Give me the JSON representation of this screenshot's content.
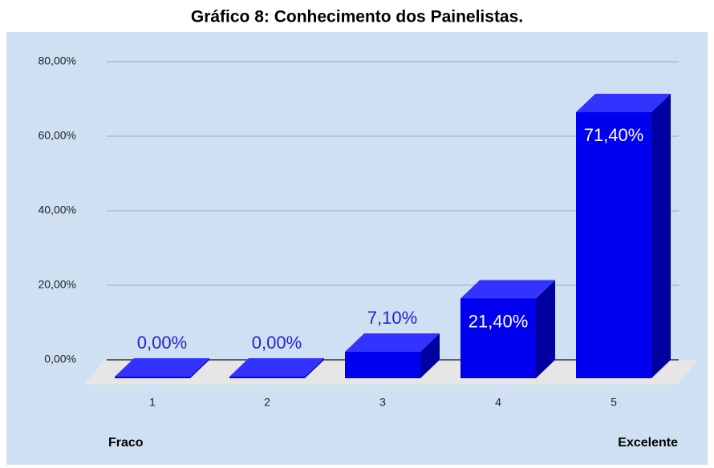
{
  "chart_data": {
    "type": "bar3d",
    "title": "Gráfico 8: Conhecimento dos Painelistas.",
    "categories": [
      "1",
      "2",
      "3",
      "4",
      "5"
    ],
    "values": [
      0,
      0,
      7.1,
      21.4,
      71.4
    ],
    "value_labels": [
      "0,00%",
      "0,00%",
      "7,10%",
      "21,40%",
      "71,40%"
    ],
    "color": "#0000ee",
    "ylim": [
      0,
      80
    ],
    "yticks": [
      {
        "value": 0,
        "label": "0,00%"
      },
      {
        "value": 20,
        "label": "20,00%"
      },
      {
        "value": 40,
        "label": "40,00%"
      },
      {
        "value": 60,
        "label": "60,00%"
      },
      {
        "value": 80,
        "label": "80,00%"
      }
    ],
    "grid": true,
    "annotations": [
      "Fraco",
      "Excelente"
    ]
  }
}
